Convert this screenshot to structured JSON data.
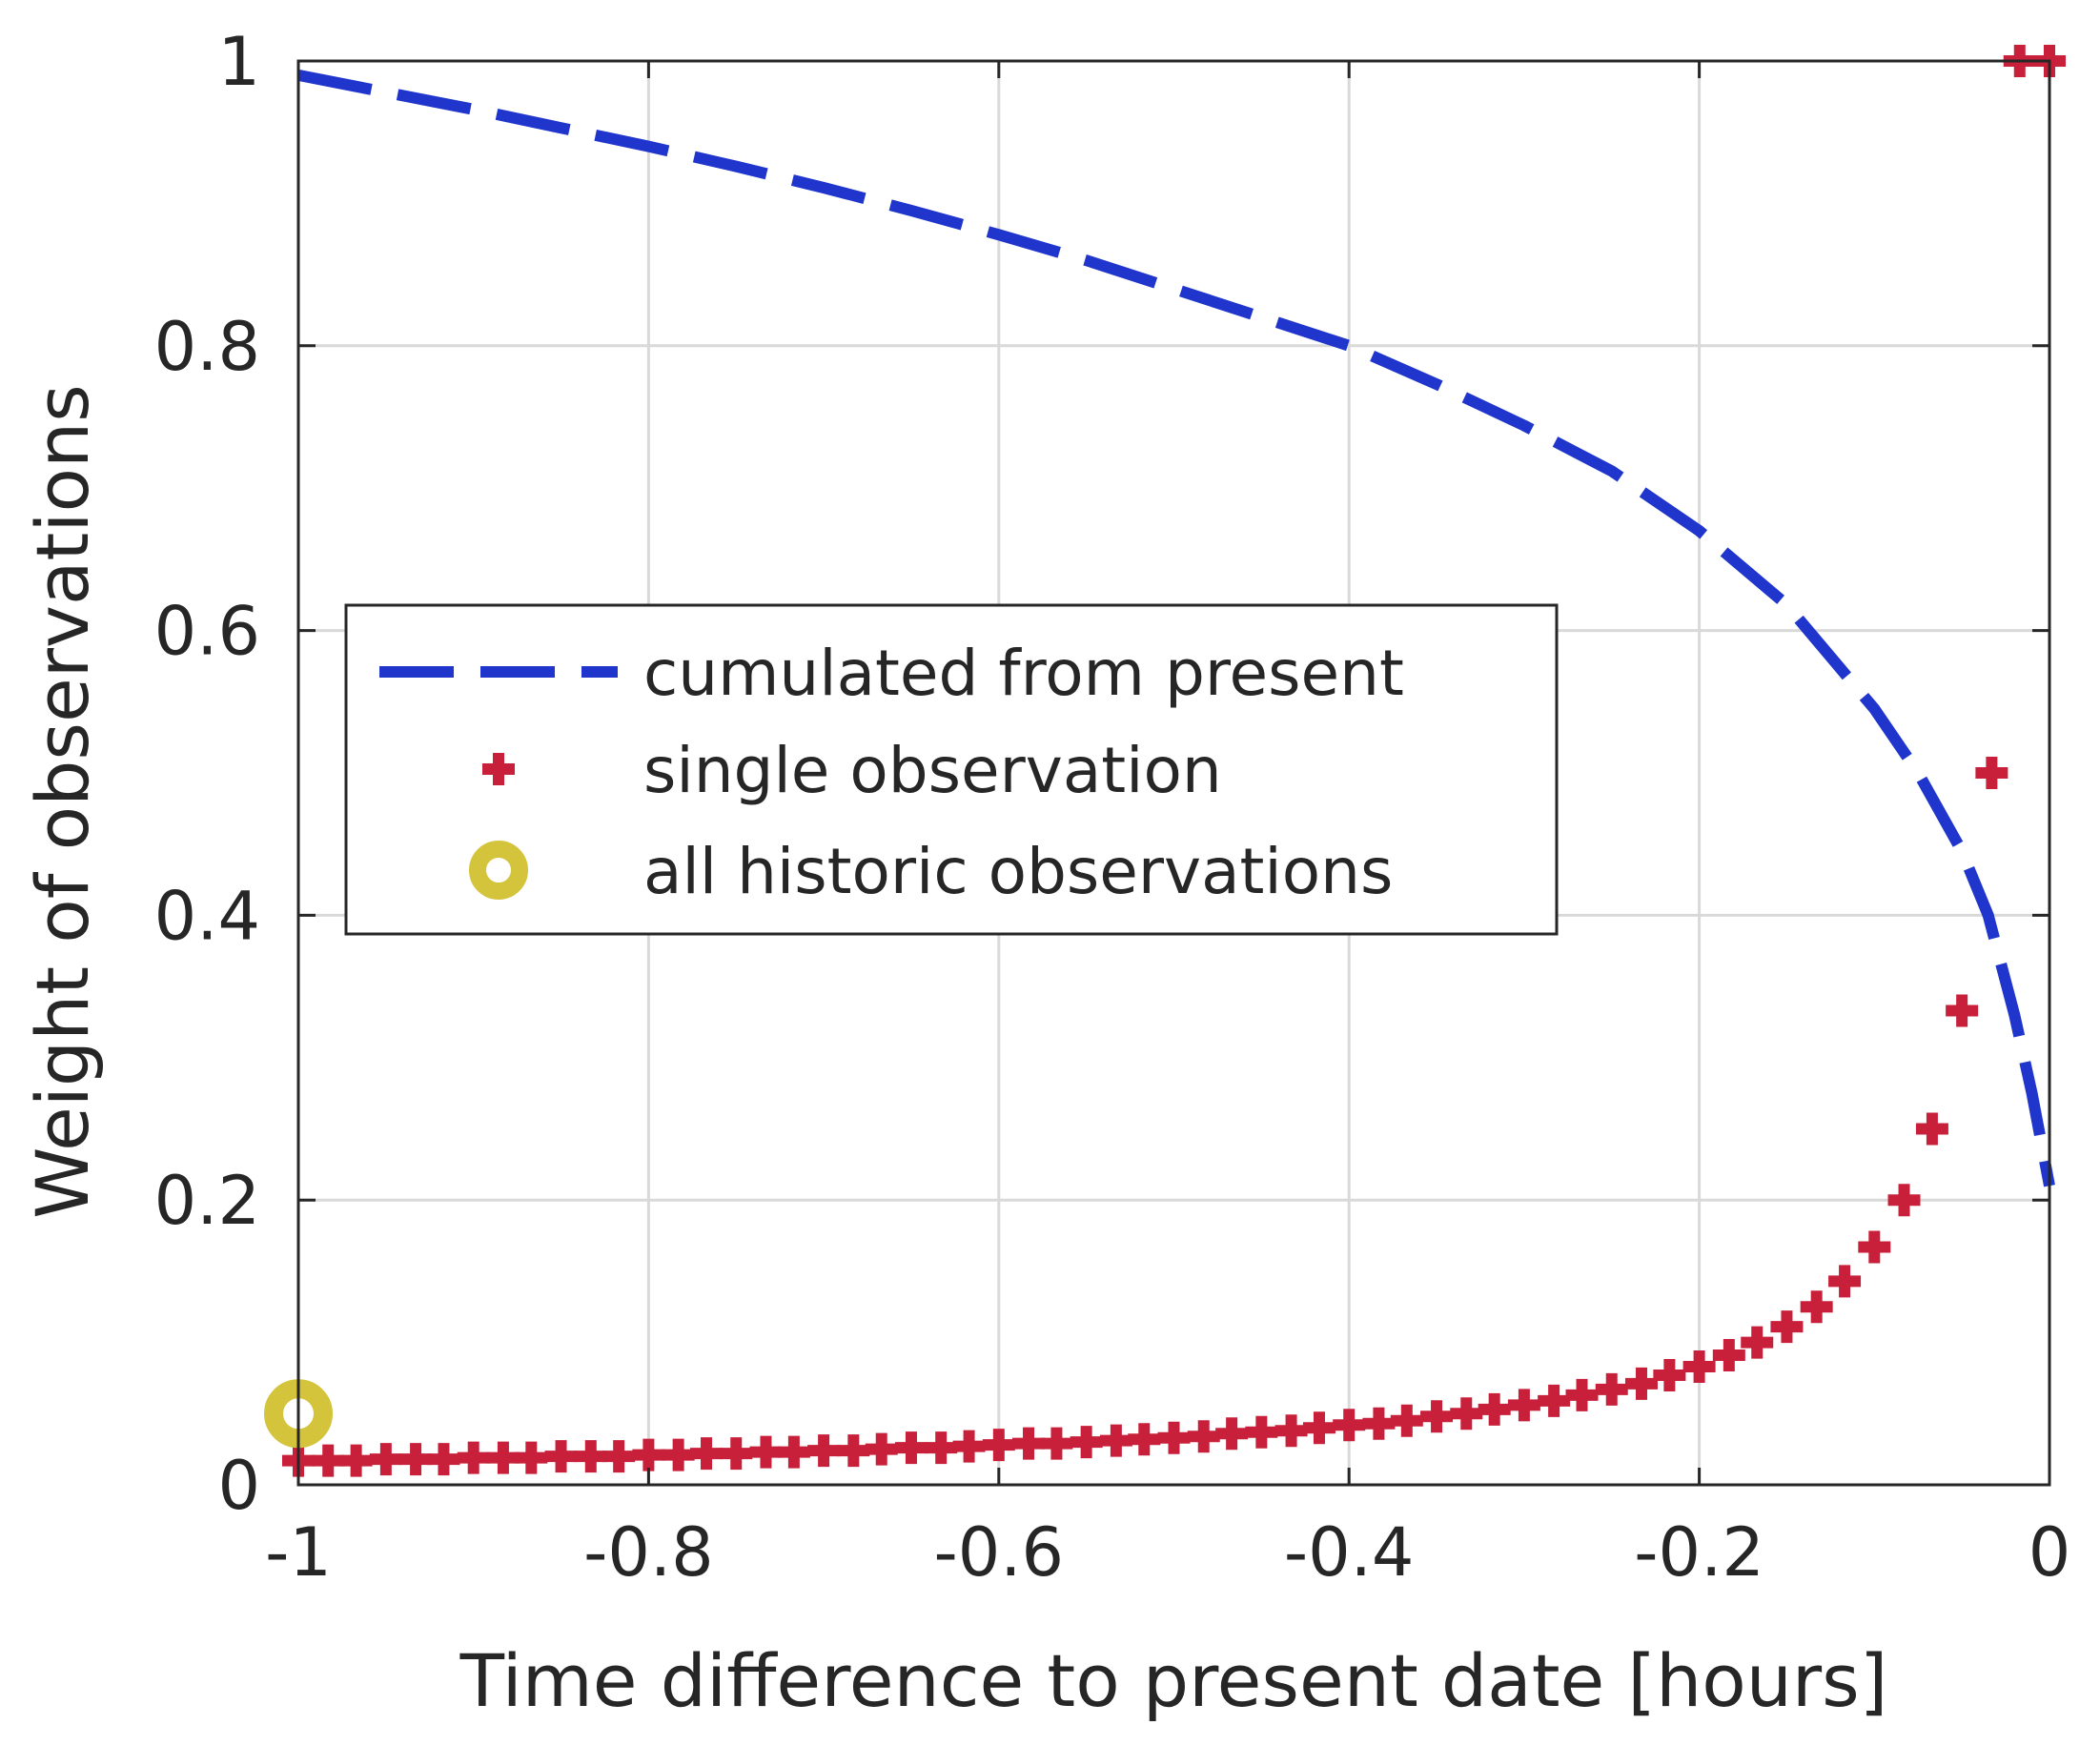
{
  "chart_data": {
    "type": "line",
    "title": "",
    "xlabel": "Time difference to present date [hours]",
    "ylabel": "Weight of observations",
    "xlim": [
      -1,
      0
    ],
    "ylim": [
      0,
      1
    ],
    "grid": true,
    "legend_position": "center-left",
    "xticks": [
      -1,
      -0.8,
      -0.6,
      -0.4,
      -0.2,
      0
    ],
    "xtick_labels": [
      "-1",
      "-0.8",
      "-0.6",
      "-0.4",
      "-0.2",
      "0"
    ],
    "yticks": [
      0,
      0.2,
      0.4,
      0.6,
      0.8,
      1
    ],
    "ytick_labels": [
      "0",
      "0.2",
      "0.4",
      "0.6",
      "0.8",
      "1"
    ],
    "series": [
      {
        "name": "cumulated from present",
        "style": "dashed-line",
        "color": "#1f35cc",
        "x": [
          -1,
          -0.95,
          -0.9,
          -0.85,
          -0.8,
          -0.75,
          -0.7,
          -0.65,
          -0.6,
          -0.55,
          -0.5,
          -0.45,
          -0.4,
          -0.35,
          -0.3,
          -0.25,
          -0.2,
          -0.15,
          -0.1,
          -0.075,
          -0.05,
          -0.035,
          -0.02,
          -0.01,
          0
        ],
        "y": [
          0.99,
          0.978,
          0.966,
          0.953,
          0.94,
          0.926,
          0.911,
          0.895,
          0.878,
          0.86,
          0.84,
          0.82,
          0.8,
          0.773,
          0.744,
          0.712,
          0.67,
          0.618,
          0.545,
          0.5,
          0.445,
          0.4,
          0.33,
          0.275,
          0.21
        ]
      },
      {
        "name": "single observation",
        "style": "plus-markers",
        "color": "#c8203a",
        "x": [
          -1,
          -0.983,
          -0.967,
          -0.95,
          -0.933,
          -0.917,
          -0.9,
          -0.883,
          -0.867,
          -0.85,
          -0.833,
          -0.817,
          -0.8,
          -0.783,
          -0.767,
          -0.75,
          -0.733,
          -0.717,
          -0.7,
          -0.683,
          -0.667,
          -0.65,
          -0.633,
          -0.617,
          -0.6,
          -0.583,
          -0.567,
          -0.55,
          -0.533,
          -0.517,
          -0.5,
          -0.483,
          -0.467,
          -0.45,
          -0.433,
          -0.417,
          -0.4,
          -0.383,
          -0.367,
          -0.35,
          -0.333,
          -0.317,
          -0.3,
          -0.283,
          -0.267,
          -0.25,
          -0.233,
          -0.217,
          -0.2,
          -0.183,
          -0.167,
          -0.15,
          -0.133,
          -0.117,
          -0.1,
          -0.083,
          -0.067,
          -0.05,
          -0.033,
          -0.017,
          0
        ],
        "y": [
          0.017,
          0.017,
          0.017,
          0.018,
          0.018,
          0.018,
          0.019,
          0.019,
          0.019,
          0.02,
          0.02,
          0.02,
          0.021,
          0.021,
          0.022,
          0.022,
          0.023,
          0.023,
          0.024,
          0.024,
          0.025,
          0.026,
          0.026,
          0.027,
          0.028,
          0.029,
          0.029,
          0.03,
          0.031,
          0.032,
          0.033,
          0.034,
          0.036,
          0.037,
          0.038,
          0.04,
          0.042,
          0.043,
          0.045,
          0.048,
          0.05,
          0.053,
          0.056,
          0.059,
          0.063,
          0.067,
          0.071,
          0.077,
          0.083,
          0.091,
          0.1,
          0.111,
          0.125,
          0.143,
          0.167,
          0.2,
          0.25,
          0.333,
          0.5,
          1.0,
          1.0
        ]
      },
      {
        "name": "all historic observations",
        "style": "ring-marker",
        "color": "#d4c43c",
        "x": [
          -1
        ],
        "y": [
          0.05
        ]
      }
    ]
  },
  "legend": {
    "items": [
      "cumulated from present",
      "single observation",
      "all historic observations"
    ]
  }
}
